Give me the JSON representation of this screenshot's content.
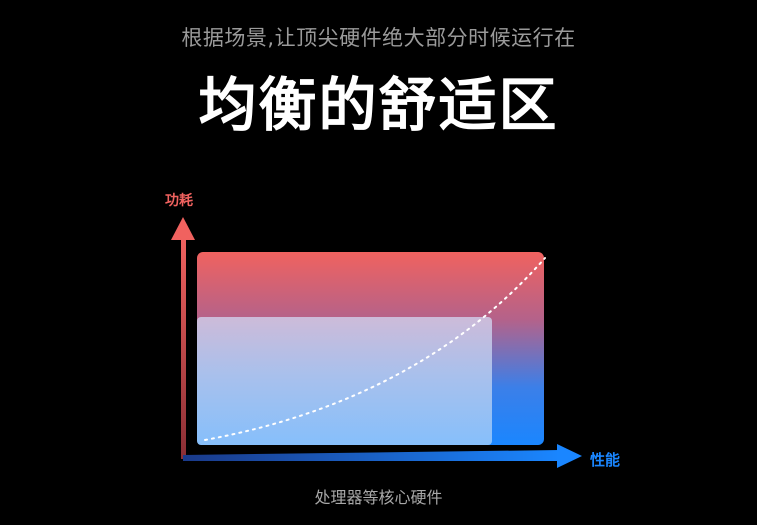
{
  "subtitle": "根据场景,让顶尖硬件绝大部分时候运行在",
  "title": "均衡的舒适区",
  "diagram": {
    "y_axis_label": "功耗",
    "x_axis_label": "性能",
    "caption": "处理器等核心硬件"
  },
  "colors": {
    "background": "#000000",
    "power_axis": "#f0625f",
    "performance_axis": "#1a86ff",
    "outer_zone_top": "#f0625f",
    "outer_zone_bottom": "#1a86ff",
    "comfort_zone": "#8cc0f8",
    "curve": "#ffffff"
  }
}
